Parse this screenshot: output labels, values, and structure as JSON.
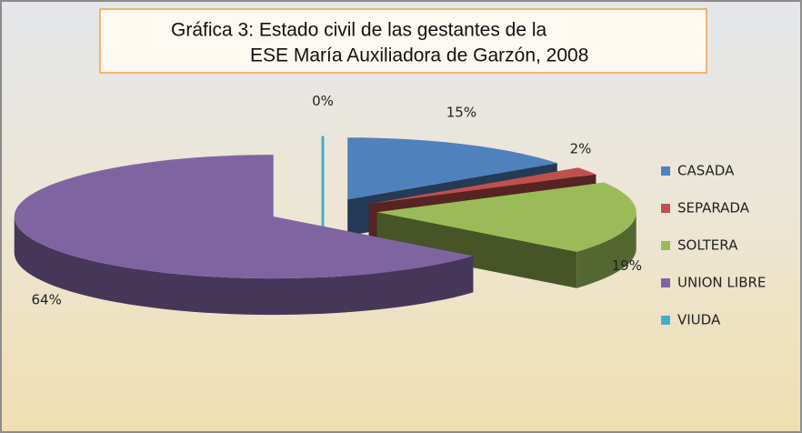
{
  "chart_data": {
    "type": "pie3d",
    "title": [
      "Gráfica 3: Estado civil de las gestantes de la",
      "ESE María Auxiliadora de Garzón, 2008"
    ],
    "categories": [
      "CASADA",
      "SEPARADA",
      "SOLTERA",
      "UNION LIBRE",
      "VIUDA"
    ],
    "values": [
      15,
      2,
      19,
      64,
      0
    ],
    "value_labels": [
      "15%",
      "2%",
      "19%",
      "64%",
      "0%"
    ],
    "colors": [
      "#4f81bd",
      "#c0504d",
      "#9bbb59",
      "#8064a2",
      "#4bacc6"
    ],
    "legend": "right"
  }
}
